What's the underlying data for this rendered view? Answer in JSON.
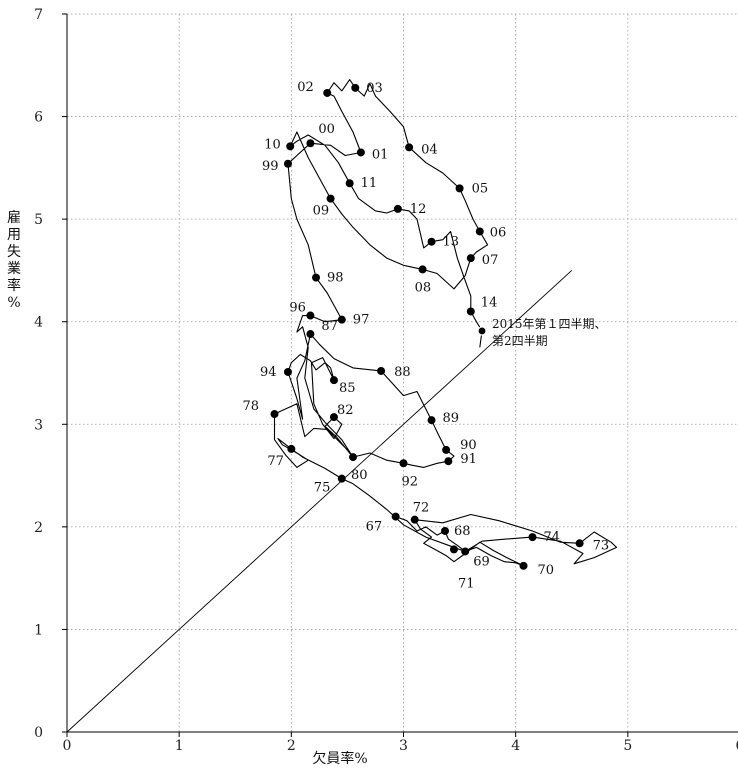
{
  "chart_data": {
    "type": "line",
    "xlabel": "欠員率%",
    "ylabel": "雇用失業率%",
    "xlim": [
      0,
      6
    ],
    "ylim": [
      0,
      7
    ],
    "xticks": [
      "0",
      "1",
      "2",
      "3",
      "4",
      "5",
      "6"
    ],
    "yticks": [
      "0",
      "1",
      "2",
      "3",
      "4",
      "5",
      "6",
      "7"
    ],
    "grid": true,
    "reference_line": {
      "from": [
        0,
        0
      ],
      "to": [
        4.5,
        4.5
      ]
    },
    "annotation": {
      "lines": [
        "2015年第１四半期、",
        "第2四半期"
      ],
      "x": 3.7,
      "y": 3.9
    },
    "points": [
      {
        "label": "67",
        "x": 2.93,
        "y": 2.1
      },
      {
        "label": "68",
        "x": 3.37,
        "y": 1.96
      },
      {
        "label": "69",
        "x": 3.55,
        "y": 1.76
      },
      {
        "label": "70",
        "x": 4.07,
        "y": 1.62
      },
      {
        "label": "71",
        "x": 3.45,
        "y": 1.78
      },
      {
        "label": "72",
        "x": 3.1,
        "y": 2.07
      },
      {
        "label": "73",
        "x": 4.57,
        "y": 1.84
      },
      {
        "label": "74",
        "x": 4.15,
        "y": 1.9
      },
      {
        "label": "75",
        "x": 2.45,
        "y": 2.47
      },
      {
        "label": "77",
        "x": 2.0,
        "y": 2.76
      },
      {
        "label": "78",
        "x": 1.85,
        "y": 3.1
      },
      {
        "label": "80",
        "x": 2.55,
        "y": 2.68
      },
      {
        "label": "82",
        "x": 2.38,
        "y": 3.07
      },
      {
        "label": "85",
        "x": 2.38,
        "y": 3.43
      },
      {
        "label": "87",
        "x": 2.17,
        "y": 3.88
      },
      {
        "label": "88",
        "x": 2.8,
        "y": 3.52
      },
      {
        "label": "89",
        "x": 3.25,
        "y": 3.04
      },
      {
        "label": "90",
        "x": 3.38,
        "y": 2.75
      },
      {
        "label": "91",
        "x": 3.4,
        "y": 2.64
      },
      {
        "label": "92",
        "x": 3.0,
        "y": 2.62
      },
      {
        "label": "94",
        "x": 1.97,
        "y": 3.51
      },
      {
        "label": "96",
        "x": 2.17,
        "y": 4.06
      },
      {
        "label": "97",
        "x": 2.45,
        "y": 4.02
      },
      {
        "label": "98",
        "x": 2.22,
        "y": 4.43
      },
      {
        "label": "99",
        "x": 1.97,
        "y": 5.54
      },
      {
        "label": "00",
        "x": 2.17,
        "y": 5.74
      },
      {
        "label": "01",
        "x": 2.62,
        "y": 5.65
      },
      {
        "label": "02",
        "x": 2.32,
        "y": 6.23
      },
      {
        "label": "03",
        "x": 2.57,
        "y": 6.28
      },
      {
        "label": "04",
        "x": 3.05,
        "y": 5.7
      },
      {
        "label": "05",
        "x": 3.5,
        "y": 5.3
      },
      {
        "label": "06",
        "x": 3.68,
        "y": 4.88
      },
      {
        "label": "07",
        "x": 3.6,
        "y": 4.62
      },
      {
        "label": "08",
        "x": 3.17,
        "y": 4.51
      },
      {
        "label": "09",
        "x": 2.35,
        "y": 5.2
      },
      {
        "label": "10",
        "x": 1.99,
        "y": 5.71
      },
      {
        "label": "11",
        "x": 2.52,
        "y": 5.35
      },
      {
        "label": "12",
        "x": 2.95,
        "y": 5.1
      },
      {
        "label": "13",
        "x": 3.25,
        "y": 4.78
      },
      {
        "label": "14",
        "x": 3.6,
        "y": 4.1
      }
    ],
    "endpoint": {
      "x": 3.7,
      "y": 3.91
    },
    "path": [
      [
        2.93,
        2.1
      ],
      [
        3.03,
        2.06
      ],
      [
        3.12,
        1.96
      ],
      [
        3.2,
        2.0
      ],
      [
        3.3,
        1.92
      ],
      [
        3.37,
        1.96
      ],
      [
        3.4,
        1.88
      ],
      [
        3.48,
        1.82
      ],
      [
        3.55,
        1.76
      ],
      [
        3.65,
        1.8
      ],
      [
        3.78,
        1.72
      ],
      [
        3.9,
        1.66
      ],
      [
        4.0,
        1.65
      ],
      [
        4.07,
        1.62
      ],
      [
        3.92,
        1.7
      ],
      [
        3.8,
        1.77
      ],
      [
        3.68,
        1.85
      ],
      [
        3.55,
        1.74
      ],
      [
        3.45,
        1.66
      ],
      [
        3.38,
        1.72
      ],
      [
        3.28,
        1.78
      ],
      [
        3.18,
        1.84
      ],
      [
        3.25,
        1.9
      ],
      [
        3.15,
        1.98
      ],
      [
        3.1,
        2.07
      ],
      [
        3.35,
        2.04
      ],
      [
        3.6,
        2.12
      ],
      [
        3.85,
        2.06
      ],
      [
        4.15,
        1.96
      ],
      [
        4.4,
        1.85
      ],
      [
        4.57,
        1.84
      ],
      [
        4.7,
        1.95
      ],
      [
        4.85,
        1.85
      ],
      [
        4.9,
        1.8
      ],
      [
        4.7,
        1.7
      ],
      [
        4.52,
        1.64
      ],
      [
        4.6,
        1.74
      ],
      [
        4.4,
        1.86
      ],
      [
        4.15,
        1.9
      ],
      [
        3.9,
        1.88
      ],
      [
        3.7,
        1.86
      ],
      [
        3.55,
        1.76
      ],
      [
        3.4,
        1.82
      ],
      [
        3.2,
        1.9
      ],
      [
        3.0,
        2.02
      ],
      [
        2.85,
        2.17
      ],
      [
        2.7,
        2.3
      ],
      [
        2.55,
        2.42
      ],
      [
        2.45,
        2.47
      ],
      [
        2.3,
        2.57
      ],
      [
        2.1,
        2.68
      ],
      [
        2.0,
        2.76
      ],
      [
        1.88,
        2.86
      ],
      [
        1.92,
        2.8
      ],
      [
        2.05,
        2.72
      ],
      [
        2.15,
        2.65
      ],
      [
        2.05,
        2.58
      ],
      [
        1.95,
        2.7
      ],
      [
        1.85,
        2.85
      ],
      [
        1.85,
        3.1
      ],
      [
        1.95,
        3.15
      ],
      [
        2.05,
        3.2
      ],
      [
        2.12,
        2.88
      ],
      [
        2.2,
        2.96
      ],
      [
        2.32,
        2.95
      ],
      [
        2.4,
        2.86
      ],
      [
        2.5,
        2.75
      ],
      [
        2.55,
        2.68
      ],
      [
        2.4,
        2.88
      ],
      [
        2.3,
        2.98
      ],
      [
        2.38,
        3.07
      ],
      [
        2.45,
        3.0
      ],
      [
        2.38,
        2.86
      ],
      [
        2.28,
        3.0
      ],
      [
        2.2,
        3.2
      ],
      [
        2.18,
        3.6
      ],
      [
        2.28,
        3.65
      ],
      [
        2.38,
        3.43
      ],
      [
        2.35,
        3.55
      ],
      [
        2.3,
        3.6
      ],
      [
        2.22,
        3.53
      ],
      [
        2.17,
        3.62
      ],
      [
        2.08,
        3.68
      ],
      [
        2.0,
        3.6
      ],
      [
        1.97,
        3.51
      ],
      [
        2.05,
        3.25
      ],
      [
        2.1,
        3.05
      ],
      [
        2.05,
        3.45
      ],
      [
        2.12,
        3.62
      ],
      [
        2.17,
        3.88
      ],
      [
        2.25,
        3.78
      ],
      [
        2.38,
        3.64
      ],
      [
        2.55,
        3.55
      ],
      [
        2.8,
        3.52
      ],
      [
        2.9,
        3.4
      ],
      [
        3.0,
        3.28
      ],
      [
        3.12,
        3.32
      ],
      [
        3.25,
        3.04
      ],
      [
        3.32,
        2.88
      ],
      [
        3.38,
        2.75
      ],
      [
        3.45,
        2.69
      ],
      [
        3.4,
        2.64
      ],
      [
        3.3,
        2.62
      ],
      [
        3.18,
        2.58
      ],
      [
        3.08,
        2.6
      ],
      [
        3.0,
        2.62
      ],
      [
        2.85,
        2.65
      ],
      [
        2.7,
        2.72
      ],
      [
        2.55,
        2.68
      ],
      [
        2.45,
        2.85
      ],
      [
        2.3,
        3.02
      ],
      [
        2.2,
        3.15
      ],
      [
        2.12,
        3.45
      ],
      [
        2.15,
        3.75
      ],
      [
        2.1,
        3.95
      ],
      [
        2.05,
        3.9
      ],
      [
        2.1,
        4.06
      ],
      [
        2.17,
        4.06
      ],
      [
        2.3,
        4.0
      ],
      [
        2.45,
        4.02
      ],
      [
        2.4,
        4.12
      ],
      [
        2.32,
        4.28
      ],
      [
        2.22,
        4.43
      ],
      [
        2.15,
        4.75
      ],
      [
        2.05,
        5.0
      ],
      [
        2.0,
        5.2
      ],
      [
        1.97,
        5.54
      ],
      [
        2.05,
        5.62
      ],
      [
        2.17,
        5.74
      ],
      [
        2.35,
        5.72
      ],
      [
        2.48,
        5.62
      ],
      [
        2.62,
        5.65
      ],
      [
        2.55,
        5.85
      ],
      [
        2.45,
        6.05
      ],
      [
        2.38,
        6.2
      ],
      [
        2.32,
        6.23
      ],
      [
        2.38,
        6.33
      ],
      [
        2.45,
        6.25
      ],
      [
        2.52,
        6.36
      ],
      [
        2.57,
        6.28
      ],
      [
        2.65,
        6.2
      ],
      [
        2.7,
        6.32
      ],
      [
        2.75,
        6.2
      ],
      [
        2.88,
        6.05
      ],
      [
        3.0,
        5.9
      ],
      [
        3.05,
        5.7
      ],
      [
        3.2,
        5.55
      ],
      [
        3.35,
        5.45
      ],
      [
        3.5,
        5.3
      ],
      [
        3.55,
        5.18
      ],
      [
        3.62,
        5.0
      ],
      [
        3.68,
        4.88
      ],
      [
        3.75,
        4.75
      ],
      [
        3.65,
        4.68
      ],
      [
        3.6,
        4.62
      ],
      [
        3.55,
        4.45
      ],
      [
        3.45,
        4.32
      ],
      [
        3.3,
        4.47
      ],
      [
        3.17,
        4.51
      ],
      [
        3.0,
        4.55
      ],
      [
        2.85,
        4.62
      ],
      [
        2.7,
        4.75
      ],
      [
        2.55,
        4.92
      ],
      [
        2.45,
        5.05
      ],
      [
        2.35,
        5.2
      ],
      [
        2.25,
        5.4
      ],
      [
        2.15,
        5.6
      ],
      [
        2.05,
        5.85
      ],
      [
        1.99,
        5.71
      ],
      [
        2.05,
        5.76
      ],
      [
        2.15,
        5.82
      ],
      [
        2.3,
        5.72
      ],
      [
        2.42,
        5.55
      ],
      [
        2.52,
        5.35
      ],
      [
        2.6,
        5.2
      ],
      [
        2.75,
        5.08
      ],
      [
        2.85,
        5.06
      ],
      [
        2.95,
        5.1
      ],
      [
        3.05,
        5.08
      ],
      [
        3.12,
        5.0
      ],
      [
        3.18,
        4.72
      ],
      [
        3.25,
        4.78
      ],
      [
        3.35,
        4.8
      ],
      [
        3.42,
        4.88
      ],
      [
        3.48,
        4.62
      ],
      [
        3.55,
        4.4
      ],
      [
        3.6,
        4.25
      ],
      [
        3.6,
        4.1
      ],
      [
        3.65,
        4.0
      ],
      [
        3.7,
        3.91
      ],
      [
        3.68,
        3.75
      ]
    ]
  }
}
